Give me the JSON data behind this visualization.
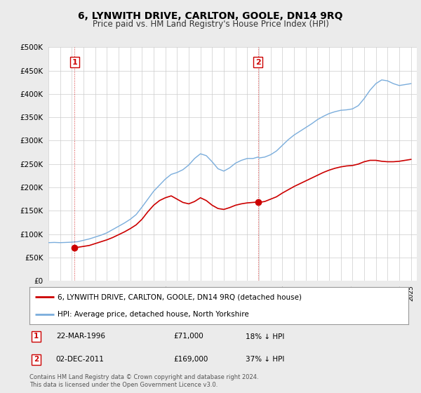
{
  "title": "6, LYNWITH DRIVE, CARLTON, GOOLE, DN14 9RQ",
  "subtitle": "Price paid vs. HM Land Registry's House Price Index (HPI)",
  "ylim": [
    0,
    500000
  ],
  "yticks": [
    0,
    50000,
    100000,
    150000,
    200000,
    250000,
    300000,
    350000,
    400000,
    450000,
    500000
  ],
  "ytick_labels": [
    "£0",
    "£50K",
    "£100K",
    "£150K",
    "£200K",
    "£250K",
    "£300K",
    "£350K",
    "£400K",
    "£450K",
    "£500K"
  ],
  "sale1_date": 1996.23,
  "sale1_price": 71000,
  "sale1_label": "1",
  "sale2_date": 2011.92,
  "sale2_price": 169000,
  "sale2_label": "2",
  "legend_line1": "6, LYNWITH DRIVE, CARLTON, GOOLE, DN14 9RQ (detached house)",
  "legend_line2": "HPI: Average price, detached house, North Yorkshire",
  "footnote": "Contains HM Land Registry data © Crown copyright and database right 2024.\nThis data is licensed under the Open Government Licence v3.0.",
  "hpi_color": "#7aaddc",
  "price_color": "#cc0000",
  "background_color": "#ebebeb",
  "plot_bg_color": "#ffffff",
  "grid_color": "#cccccc",
  "hpi_data": [
    [
      1994.0,
      82000
    ],
    [
      1994.5,
      82500
    ],
    [
      1995.0,
      82000
    ],
    [
      1995.5,
      82500
    ],
    [
      1996.0,
      83000
    ],
    [
      1996.5,
      84000
    ],
    [
      1997.0,
      87000
    ],
    [
      1997.5,
      90000
    ],
    [
      1998.0,
      94000
    ],
    [
      1998.5,
      98000
    ],
    [
      1999.0,
      103000
    ],
    [
      1999.5,
      110000
    ],
    [
      2000.0,
      117000
    ],
    [
      2000.5,
      124000
    ],
    [
      2001.0,
      132000
    ],
    [
      2001.5,
      142000
    ],
    [
      2002.0,
      158000
    ],
    [
      2002.5,
      175000
    ],
    [
      2003.0,
      192000
    ],
    [
      2003.5,
      205000
    ],
    [
      2004.0,
      218000
    ],
    [
      2004.5,
      228000
    ],
    [
      2005.0,
      232000
    ],
    [
      2005.5,
      238000
    ],
    [
      2006.0,
      248000
    ],
    [
      2006.5,
      262000
    ],
    [
      2007.0,
      272000
    ],
    [
      2007.5,
      268000
    ],
    [
      2008.0,
      255000
    ],
    [
      2008.5,
      240000
    ],
    [
      2009.0,
      235000
    ],
    [
      2009.5,
      242000
    ],
    [
      2010.0,
      252000
    ],
    [
      2010.5,
      258000
    ],
    [
      2011.0,
      262000
    ],
    [
      2011.5,
      262000
    ],
    [
      2011.92,
      265000
    ],
    [
      2012.0,
      263000
    ],
    [
      2012.5,
      265000
    ],
    [
      2013.0,
      270000
    ],
    [
      2013.5,
      278000
    ],
    [
      2014.0,
      290000
    ],
    [
      2014.5,
      302000
    ],
    [
      2015.0,
      312000
    ],
    [
      2015.5,
      320000
    ],
    [
      2016.0,
      328000
    ],
    [
      2016.5,
      336000
    ],
    [
      2017.0,
      345000
    ],
    [
      2017.5,
      352000
    ],
    [
      2018.0,
      358000
    ],
    [
      2018.5,
      362000
    ],
    [
      2019.0,
      365000
    ],
    [
      2019.5,
      366000
    ],
    [
      2020.0,
      368000
    ],
    [
      2020.5,
      375000
    ],
    [
      2021.0,
      390000
    ],
    [
      2021.5,
      408000
    ],
    [
      2022.0,
      422000
    ],
    [
      2022.5,
      430000
    ],
    [
      2023.0,
      428000
    ],
    [
      2023.5,
      422000
    ],
    [
      2024.0,
      418000
    ],
    [
      2024.5,
      420000
    ],
    [
      2025.0,
      422000
    ]
  ],
  "price_data": [
    [
      1996.23,
      71000
    ],
    [
      1997.0,
      74000
    ],
    [
      1997.5,
      76000
    ],
    [
      1998.0,
      80000
    ],
    [
      1998.5,
      84000
    ],
    [
      1999.0,
      88000
    ],
    [
      1999.5,
      93000
    ],
    [
      2000.0,
      99000
    ],
    [
      2000.5,
      105000
    ],
    [
      2001.0,
      112000
    ],
    [
      2001.5,
      120000
    ],
    [
      2002.0,
      132000
    ],
    [
      2002.5,
      148000
    ],
    [
      2003.0,
      162000
    ],
    [
      2003.5,
      172000
    ],
    [
      2004.0,
      178000
    ],
    [
      2004.5,
      182000
    ],
    [
      2005.0,
      175000
    ],
    [
      2005.5,
      168000
    ],
    [
      2006.0,
      165000
    ],
    [
      2006.5,
      170000
    ],
    [
      2007.0,
      178000
    ],
    [
      2007.5,
      172000
    ],
    [
      2008.0,
      162000
    ],
    [
      2008.5,
      155000
    ],
    [
      2009.0,
      153000
    ],
    [
      2009.5,
      157000
    ],
    [
      2010.0,
      162000
    ],
    [
      2010.5,
      165000
    ],
    [
      2011.0,
      167000
    ],
    [
      2011.5,
      168000
    ],
    [
      2011.92,
      169000
    ],
    [
      2012.0,
      168000
    ],
    [
      2012.5,
      170000
    ],
    [
      2013.0,
      175000
    ],
    [
      2013.5,
      180000
    ],
    [
      2014.0,
      188000
    ],
    [
      2014.5,
      195000
    ],
    [
      2015.0,
      202000
    ],
    [
      2015.5,
      208000
    ],
    [
      2016.0,
      214000
    ],
    [
      2016.5,
      220000
    ],
    [
      2017.0,
      226000
    ],
    [
      2017.5,
      232000
    ],
    [
      2018.0,
      237000
    ],
    [
      2018.5,
      241000
    ],
    [
      2019.0,
      244000
    ],
    [
      2019.5,
      246000
    ],
    [
      2020.0,
      247000
    ],
    [
      2020.5,
      250000
    ],
    [
      2021.0,
      255000
    ],
    [
      2021.5,
      258000
    ],
    [
      2022.0,
      258000
    ],
    [
      2022.5,
      256000
    ],
    [
      2023.0,
      255000
    ],
    [
      2023.5,
      255000
    ],
    [
      2024.0,
      256000
    ],
    [
      2024.5,
      258000
    ],
    [
      2025.0,
      260000
    ]
  ]
}
